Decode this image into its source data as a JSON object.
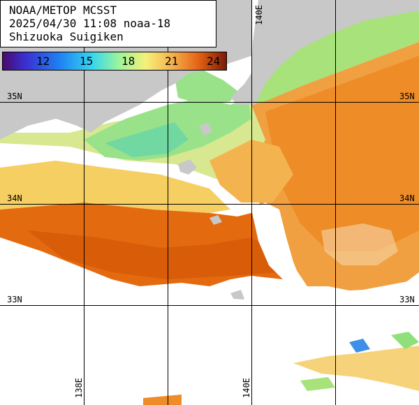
{
  "header": {
    "line1": "NOAA/METOP MCSST",
    "line2": "2025/04/30 11:08 noaa-18",
    "line3": "Shizuoka Suigiken"
  },
  "scale": {
    "ticks": [
      "12",
      "15",
      "18",
      "21",
      "24"
    ]
  },
  "grid": {
    "lat_labels": [
      "35N",
      "34N",
      "33N"
    ],
    "lon_labels": [
      "138E",
      "140E"
    ]
  },
  "colors": {
    "land": "#c8c8c8",
    "cloud": "#ffffff",
    "grid": "#000000",
    "warm": "#e8730e",
    "mid": "#f4b440",
    "cool": "#8de07a",
    "cold": "#56c8d8"
  }
}
